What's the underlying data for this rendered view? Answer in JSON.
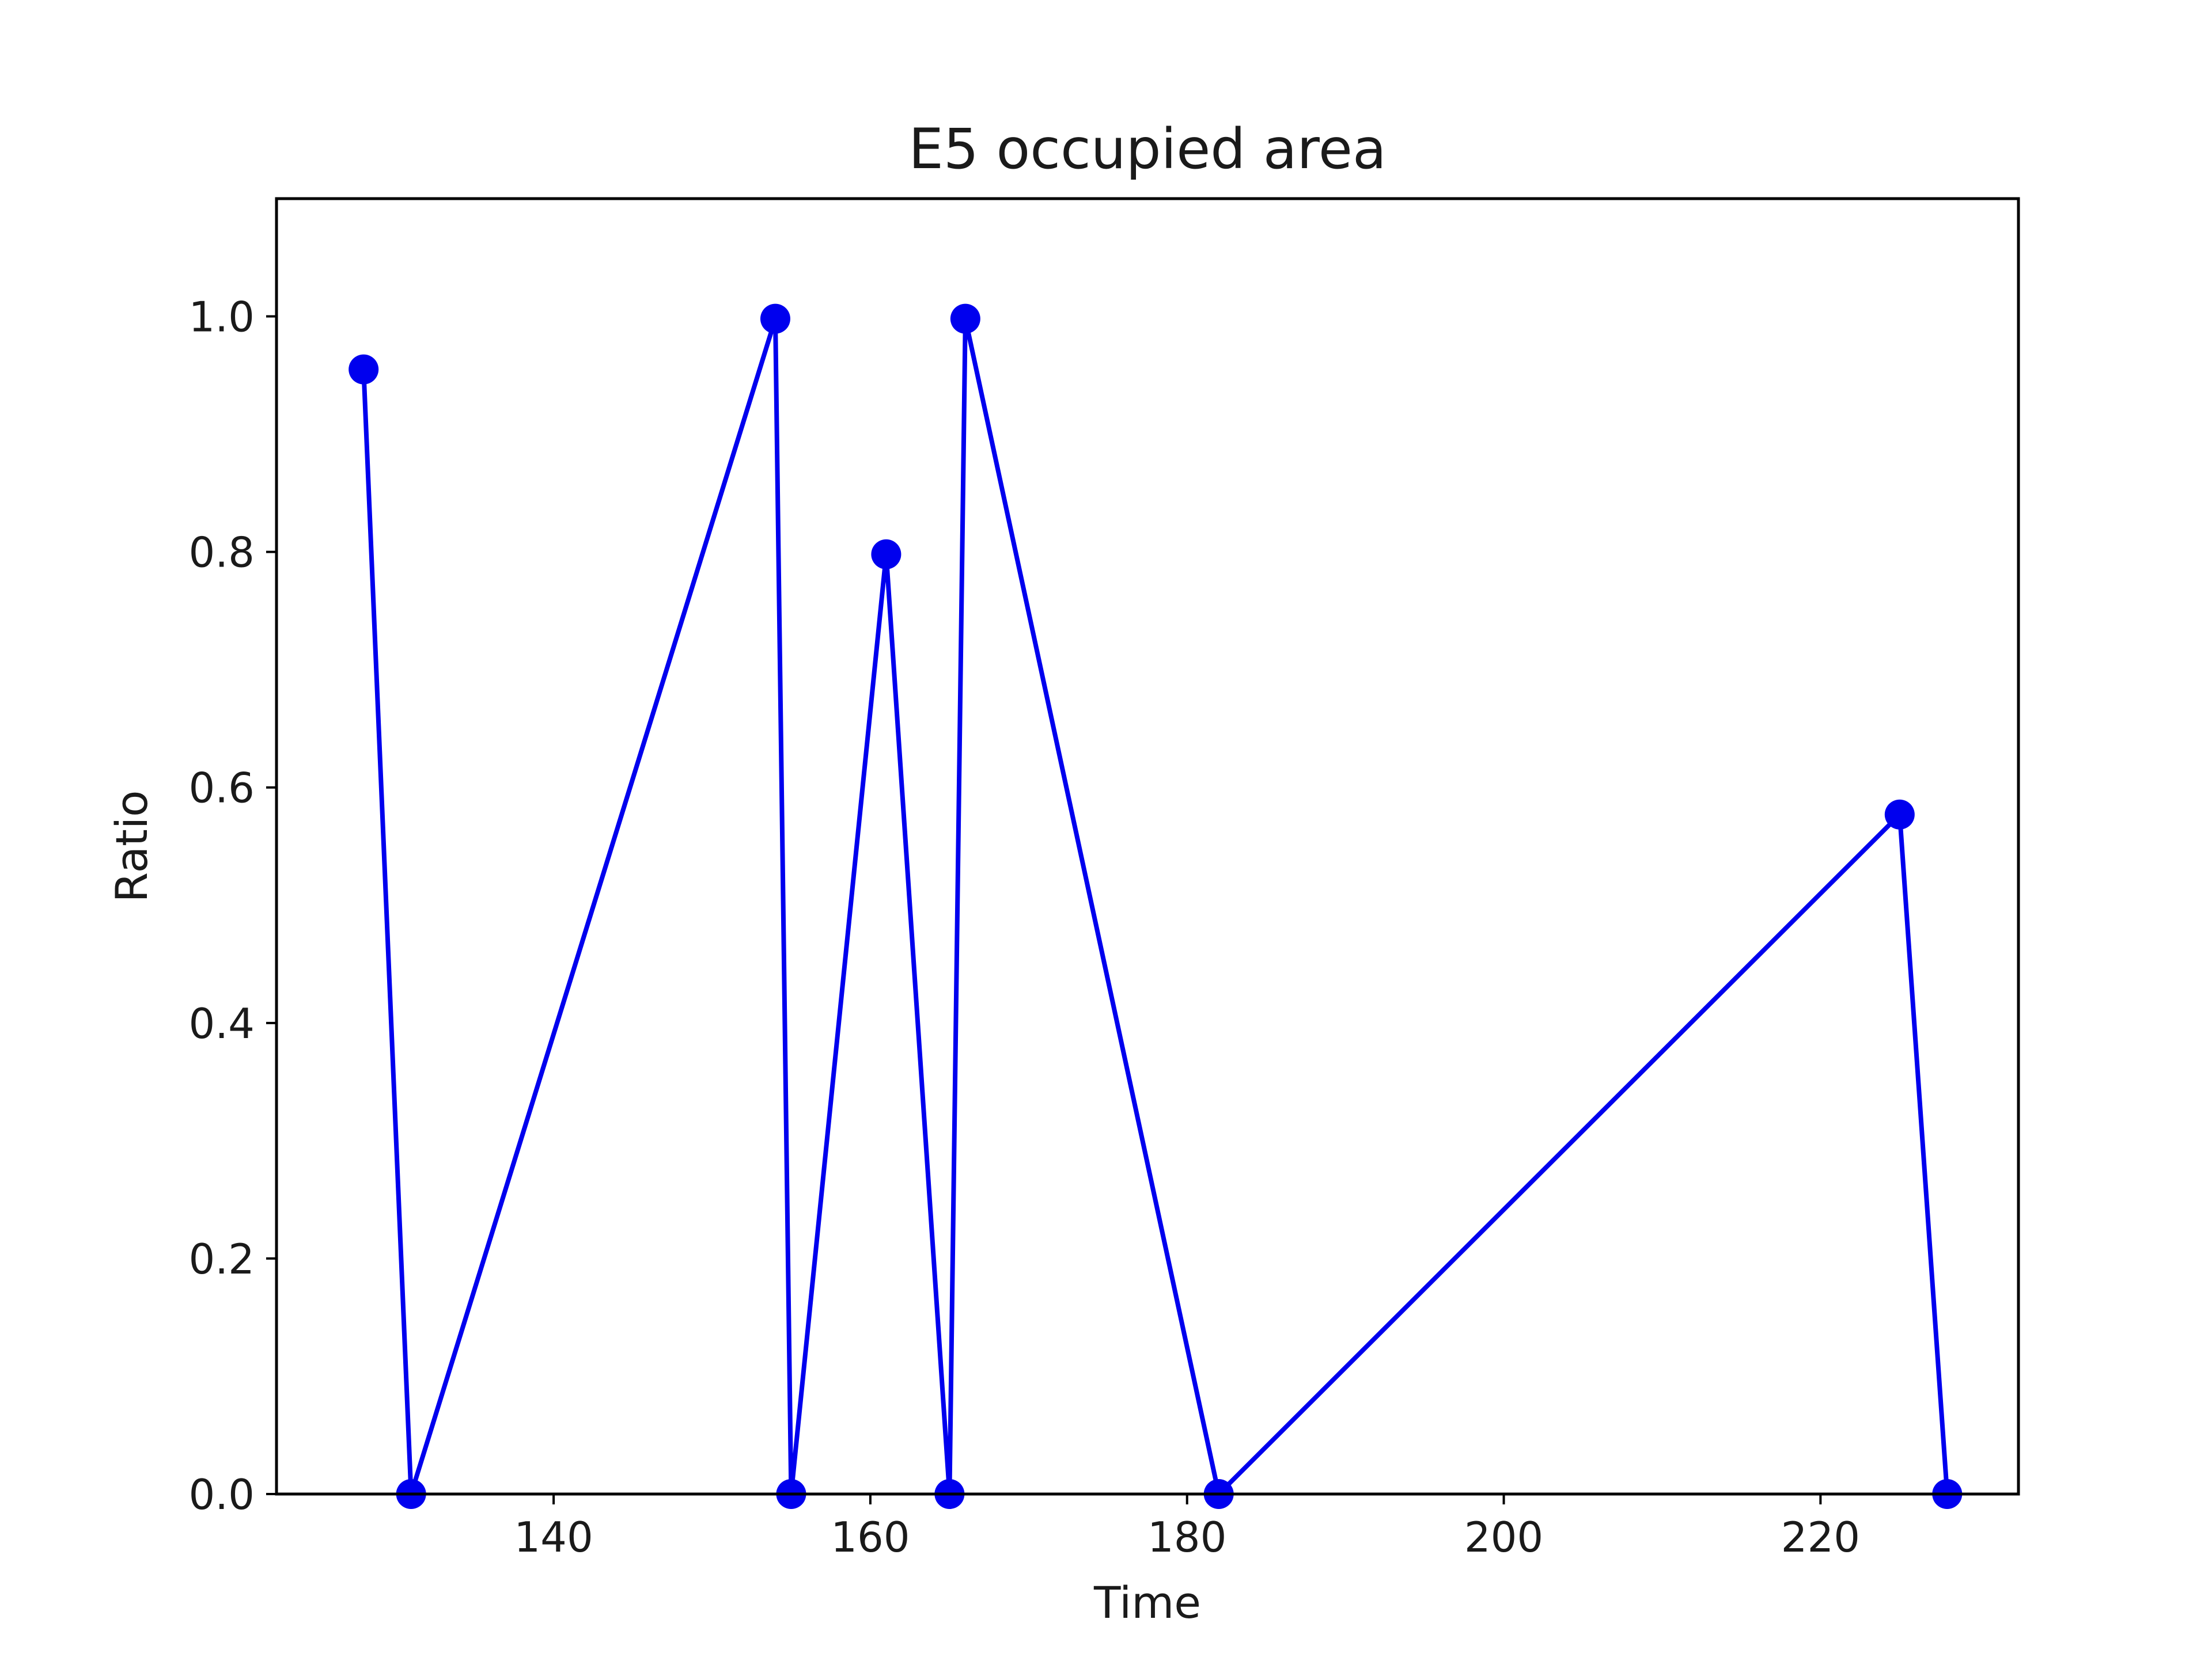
{
  "chart_data": {
    "type": "line",
    "title": "E5 occupied area",
    "xlabel": "Time",
    "ylabel": "Ratio",
    "xlim": [
      122.5,
      232.5
    ],
    "ylim": [
      0.0,
      1.1
    ],
    "x_ticks": [
      140,
      160,
      180,
      200,
      220
    ],
    "x_tick_labels": [
      "140",
      "160",
      "180",
      "200",
      "220"
    ],
    "y_ticks": [
      0.0,
      0.2,
      0.4,
      0.6,
      0.8,
      1.0
    ],
    "y_tick_labels": [
      "0.0",
      "0.2",
      "0.4",
      "0.6",
      "0.8",
      "1.0"
    ],
    "grid": false,
    "series": [
      {
        "color": "#0000ee",
        "marker": "circle",
        "x": [
          128,
          131,
          154,
          155,
          161,
          165,
          166,
          182,
          225,
          228
        ],
        "y": [
          0.955,
          0.0,
          0.998,
          0.0,
          0.798,
          0.0,
          0.998,
          0.0,
          0.577,
          0.0
        ]
      }
    ]
  }
}
